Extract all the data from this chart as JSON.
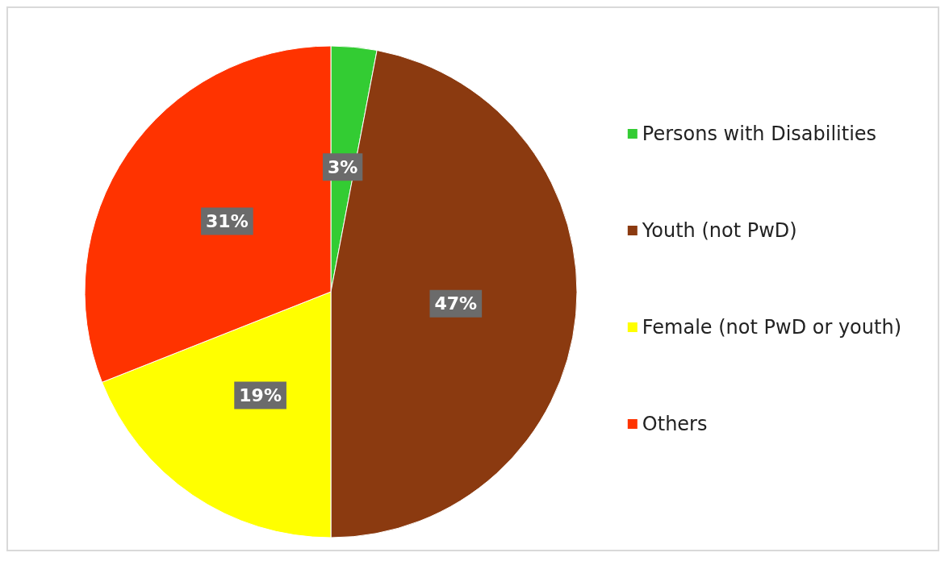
{
  "chart_data": {
    "type": "pie",
    "categories": [
      "Persons with Disabilities",
      "Youth (not PwD)",
      "Female (not PwD or youth)",
      "Others"
    ],
    "values": [
      3,
      47,
      19,
      31
    ],
    "colors": [
      "#33cc33",
      "#8b3a10",
      "#ffff00",
      "#ff3300"
    ],
    "value_labels": [
      "3%",
      "47%",
      "19%",
      "31%"
    ],
    "legend": "right"
  }
}
